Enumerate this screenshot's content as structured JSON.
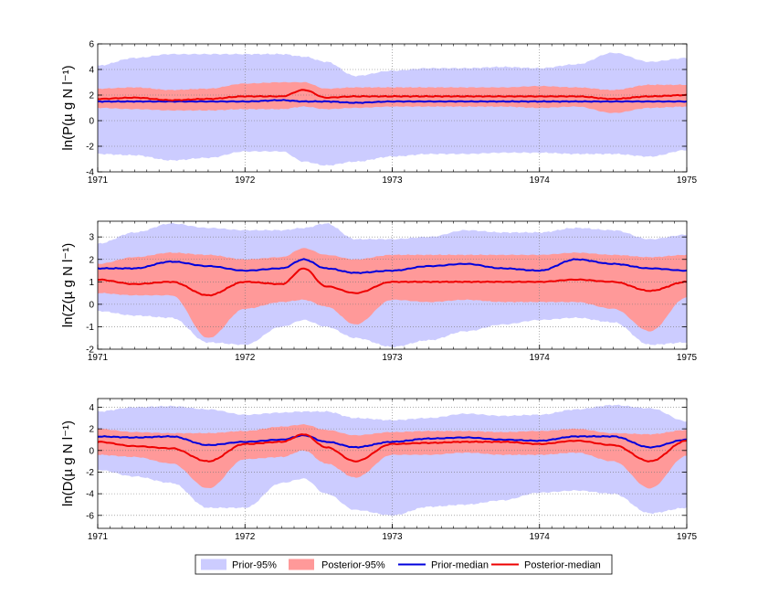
{
  "chart_data": [
    {
      "type": "area",
      "ylabel": "ln(P(µ g N l⁻¹)",
      "xlim": [
        1971,
        1975
      ],
      "ylim": [
        -4,
        6
      ],
      "xticks": [
        "1971",
        "1972",
        "1973",
        "1974",
        "1975"
      ],
      "yticks": [
        "-4",
        "-2",
        "0",
        "2",
        "4",
        "6"
      ],
      "x": [
        1971.0,
        1971.25,
        1971.5,
        1971.75,
        1972.0,
        1972.25,
        1972.4,
        1972.55,
        1972.75,
        1973.0,
        1973.25,
        1973.5,
        1973.75,
        1974.0,
        1974.25,
        1974.5,
        1974.75,
        1975.0
      ],
      "series": [
        {
          "name": "Prior-95%",
          "lower": [
            -2.6,
            -2.7,
            -3.1,
            -2.9,
            -2.4,
            -2.4,
            -3.2,
            -3.5,
            -3.2,
            -2.8,
            -2.6,
            -2.6,
            -2.5,
            -2.5,
            -2.6,
            -2.6,
            -2.8,
            -2.3
          ],
          "upper": [
            4.3,
            4.9,
            5.2,
            5.2,
            5.2,
            5.2,
            5.0,
            4.6,
            3.5,
            3.9,
            4.1,
            4.1,
            4.2,
            4.1,
            4.4,
            5.3,
            4.6,
            4.9
          ]
        },
        {
          "name": "Posterior-95%",
          "lower": [
            1.0,
            0.9,
            0.8,
            0.8,
            0.9,
            0.9,
            1.1,
            0.9,
            1.0,
            1.1,
            1.1,
            1.1,
            1.1,
            1.0,
            1.1,
            0.6,
            1.0,
            1.1
          ],
          "upper": [
            2.5,
            2.6,
            2.4,
            2.5,
            2.9,
            3.0,
            3.0,
            2.5,
            2.6,
            2.6,
            2.6,
            2.6,
            2.6,
            2.7,
            2.6,
            2.4,
            2.8,
            2.8
          ]
        },
        {
          "name": "Prior-median",
          "values": [
            1.5,
            1.5,
            1.5,
            1.5,
            1.5,
            1.6,
            1.5,
            1.5,
            1.4,
            1.5,
            1.5,
            1.5,
            1.5,
            1.5,
            1.5,
            1.5,
            1.5,
            1.5
          ]
        },
        {
          "name": "Posterior-median",
          "values": [
            1.7,
            1.8,
            1.6,
            1.7,
            1.9,
            1.9,
            2.4,
            1.8,
            1.9,
            1.9,
            1.9,
            1.9,
            1.9,
            1.9,
            1.9,
            1.7,
            1.9,
            2.0
          ]
        }
      ]
    },
    {
      "type": "area",
      "ylabel": "ln(Z(µ g N l⁻¹)",
      "xlim": [
        1971,
        1975
      ],
      "ylim": [
        -2,
        3.7
      ],
      "xticks": [
        "1971",
        "1972",
        "1973",
        "1974",
        "1975"
      ],
      "yticks": [
        "-2",
        "-1",
        "0",
        "1",
        "2",
        "3"
      ],
      "x": [
        1971.0,
        1971.25,
        1971.5,
        1971.75,
        1972.0,
        1972.25,
        1972.4,
        1972.55,
        1972.75,
        1973.0,
        1973.25,
        1973.5,
        1973.75,
        1974.0,
        1974.25,
        1974.5,
        1974.75,
        1975.0
      ],
      "series": [
        {
          "name": "Prior-95%",
          "lower": [
            -0.3,
            -0.5,
            -0.6,
            -1.7,
            -1.8,
            -1.0,
            -0.7,
            -1.0,
            -1.5,
            -1.9,
            -1.6,
            -1.2,
            -0.9,
            -0.7,
            -0.6,
            -0.8,
            -1.8,
            -1.7
          ],
          "upper": [
            2.7,
            3.2,
            3.6,
            3.4,
            3.3,
            3.3,
            3.4,
            3.6,
            2.9,
            2.9,
            3.0,
            3.3,
            3.2,
            3.2,
            3.4,
            3.3,
            2.9,
            3.1
          ]
        },
        {
          "name": "Posterior-95%",
          "lower": [
            0.5,
            0.4,
            0.4,
            -1.5,
            -0.2,
            0.1,
            0.2,
            -0.1,
            -0.9,
            0.2,
            0.1,
            0.2,
            0.1,
            0.1,
            0.1,
            -0.2,
            -1.2,
            0.3
          ],
          "upper": [
            1.8,
            2.1,
            2.3,
            2.2,
            2.0,
            2.1,
            2.5,
            2.2,
            2.0,
            2.2,
            2.2,
            2.2,
            2.2,
            2.2,
            2.3,
            2.2,
            2.1,
            2.2
          ]
        },
        {
          "name": "Prior-median",
          "values": [
            1.6,
            1.6,
            1.9,
            1.7,
            1.5,
            1.6,
            2.0,
            1.6,
            1.4,
            1.5,
            1.7,
            1.8,
            1.6,
            1.5,
            2.0,
            1.8,
            1.6,
            1.5
          ]
        },
        {
          "name": "Posterior-median",
          "values": [
            1.1,
            0.9,
            1.0,
            0.4,
            1.0,
            0.9,
            1.6,
            0.8,
            0.5,
            1.0,
            1.0,
            1.0,
            1.0,
            1.0,
            1.1,
            1.0,
            0.6,
            1.0
          ]
        }
      ]
    },
    {
      "type": "area",
      "ylabel": "ln(D(µ g N l⁻¹)",
      "xlim": [
        1971,
        1975
      ],
      "ylim": [
        -7.2,
        4.8
      ],
      "xticks": [
        "1971",
        "1972",
        "1973",
        "1974",
        "1975"
      ],
      "yticks": [
        "-6",
        "-4",
        "-2",
        "0",
        "2",
        "4"
      ],
      "x": [
        1971.0,
        1971.25,
        1971.5,
        1971.75,
        1972.0,
        1972.25,
        1972.4,
        1972.55,
        1972.75,
        1973.0,
        1973.25,
        1973.5,
        1973.75,
        1974.0,
        1974.25,
        1974.5,
        1974.75,
        1975.0
      ],
      "series": [
        {
          "name": "Prior-95%",
          "lower": [
            -1.8,
            -2.4,
            -3.0,
            -5.3,
            -5.3,
            -3.0,
            -2.6,
            -4.0,
            -5.5,
            -6.0,
            -5.2,
            -5.0,
            -4.6,
            -3.9,
            -3.7,
            -4.0,
            -5.8,
            -5.3
          ],
          "upper": [
            3.6,
            4.0,
            4.1,
            3.8,
            3.3,
            3.5,
            3.6,
            3.6,
            3.0,
            2.8,
            3.0,
            3.4,
            3.2,
            3.3,
            3.8,
            4.2,
            3.9,
            2.7
          ]
        },
        {
          "name": "Posterior-95%",
          "lower": [
            -0.4,
            -0.6,
            -1.2,
            -3.5,
            -0.8,
            -0.6,
            0.0,
            -1.2,
            -2.5,
            -0.4,
            -0.4,
            -0.2,
            -0.4,
            -0.4,
            -0.2,
            -1.0,
            -3.5,
            -0.5
          ],
          "upper": [
            2.0,
            1.7,
            1.6,
            1.6,
            1.8,
            2.2,
            2.4,
            1.9,
            1.4,
            1.7,
            1.8,
            1.8,
            1.7,
            1.8,
            2.0,
            1.6,
            1.5,
            1.9
          ]
        },
        {
          "name": "Prior-median",
          "values": [
            1.3,
            1.2,
            1.3,
            0.5,
            0.8,
            1.0,
            1.4,
            0.8,
            0.3,
            0.8,
            1.1,
            1.2,
            1.0,
            0.9,
            1.3,
            1.3,
            0.3,
            1.0
          ]
        },
        {
          "name": "Posterior-median",
          "values": [
            0.8,
            0.4,
            0.2,
            -1.0,
            0.6,
            0.8,
            1.5,
            0.3,
            -1.0,
            0.6,
            0.7,
            0.8,
            0.8,
            0.6,
            0.9,
            0.5,
            -1.0,
            0.9
          ]
        }
      ]
    }
  ],
  "legend": {
    "entries": [
      {
        "label": "Prior-95%",
        "kind": "patch",
        "color": "#ccccff"
      },
      {
        "label": "Posterior-95%",
        "kind": "patch",
        "color": "#ff9999"
      },
      {
        "label": "Prior-median",
        "kind": "line",
        "color": "#0000dd"
      },
      {
        "label": "Posterior-median",
        "kind": "line",
        "color": "#ee0000"
      }
    ]
  },
  "colors": {
    "prior_band": "#ccccff",
    "posterior_band": "#ff9999",
    "prior_median": "#0000dd",
    "posterior_median": "#ee0000"
  }
}
